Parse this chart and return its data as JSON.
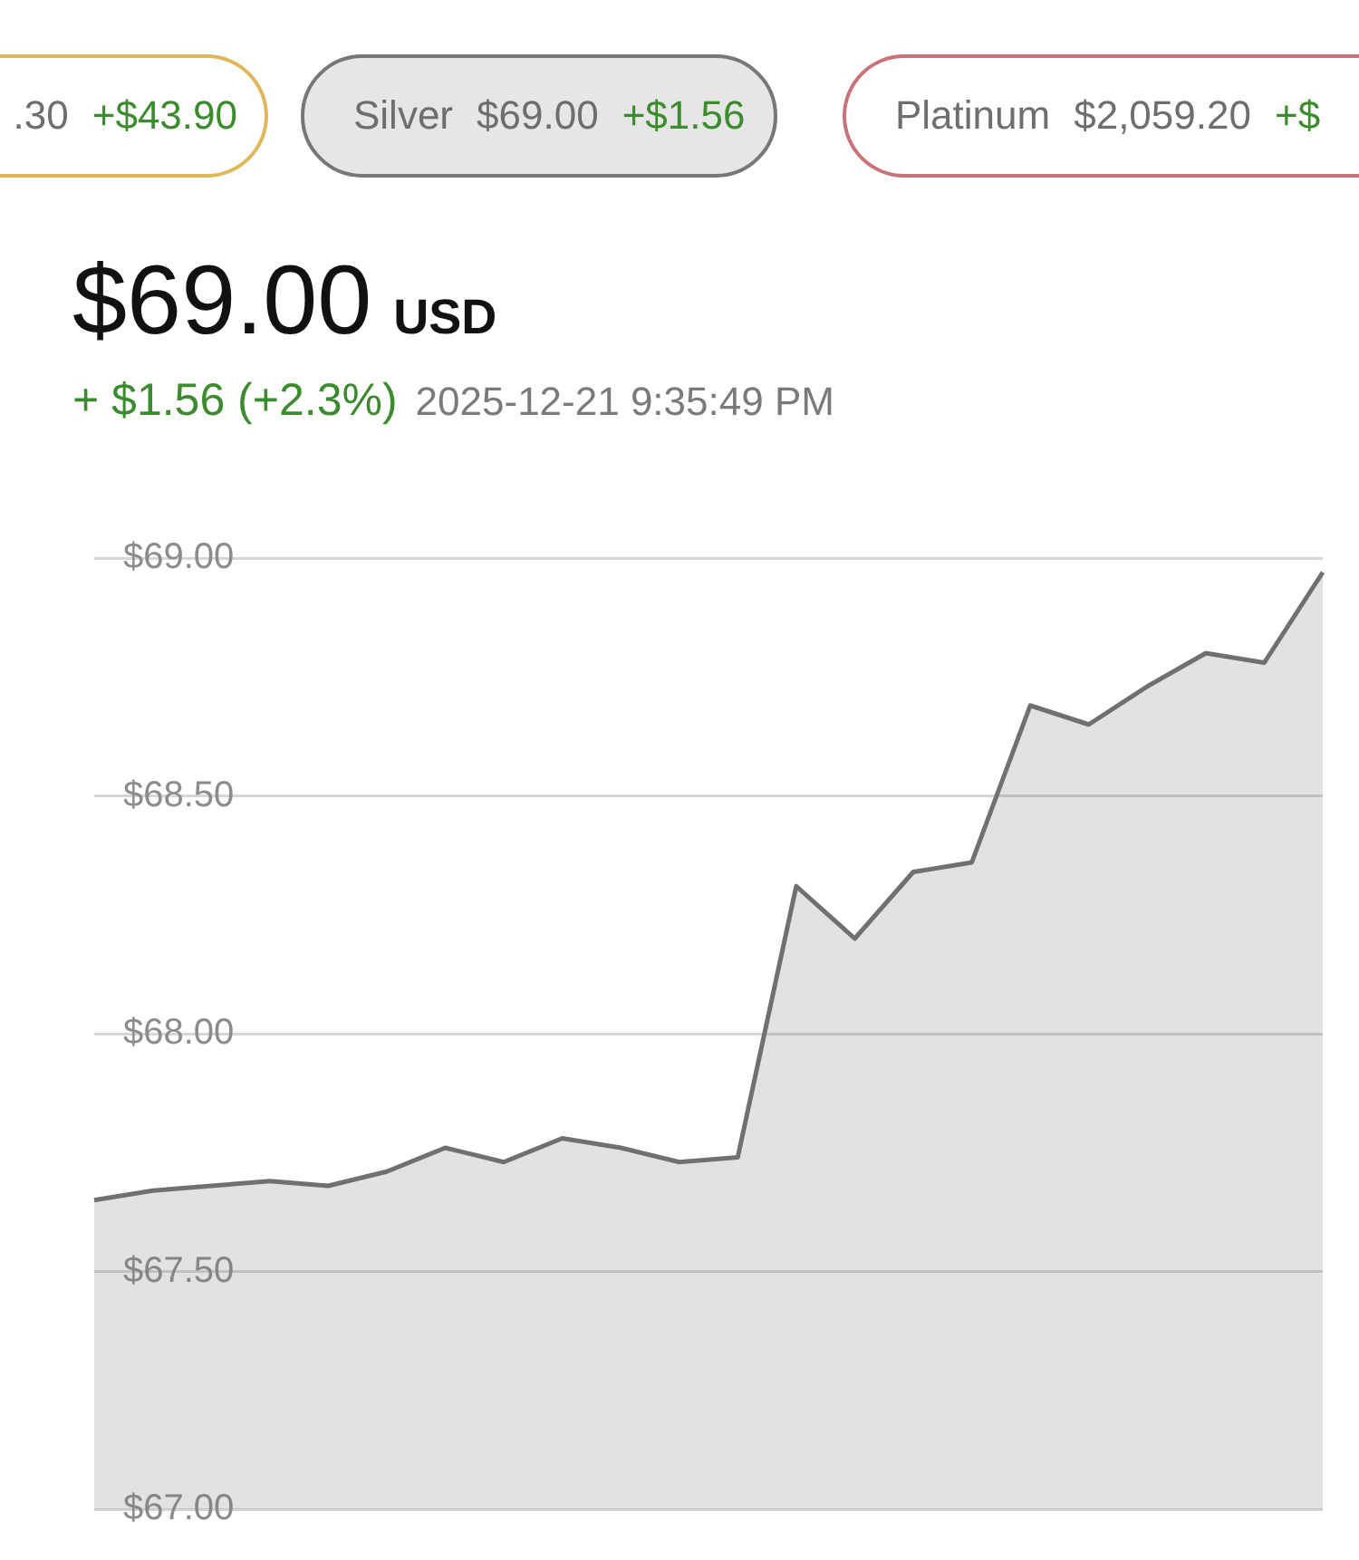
{
  "chart_data": {
    "type": "area",
    "title": "$69.00 USD",
    "subtitle": "+ $1.56 (+2.3%)",
    "annotations": [
      ".30 +$43.90",
      "Silver $69.00 +$1.56",
      "Platinum $2,059.20 +$",
      "2025-12-21 9:35:49 PM"
    ],
    "categories": [
      null,
      null,
      null,
      null,
      null,
      null,
      null,
      null,
      null,
      null,
      null,
      null,
      null,
      null,
      null,
      null,
      null,
      null,
      null,
      null,
      null,
      null
    ],
    "values": [
      67.65,
      67.67,
      67.68,
      67.69,
      67.68,
      67.71,
      67.76,
      67.73,
      67.78,
      67.76,
      67.73,
      67.74,
      68.31,
      68.2,
      68.34,
      68.36,
      68.69,
      68.65,
      68.73,
      68.8,
      68.78,
      68.97
    ],
    "color": "#707070",
    "ylim": [
      67,
      69
    ],
    "yticks": [
      {
        "value": 67,
        "label": "$67.00"
      },
      {
        "value": 67.5,
        "label": "$67.50"
      },
      {
        "value": 68,
        "label": "$68.00"
      },
      {
        "value": 68.5,
        "label": "$68.50"
      },
      {
        "value": 69,
        "label": "$69.00"
      }
    ],
    "grid": "y",
    "tick_labels": "y",
    "marker": "none"
  }
}
